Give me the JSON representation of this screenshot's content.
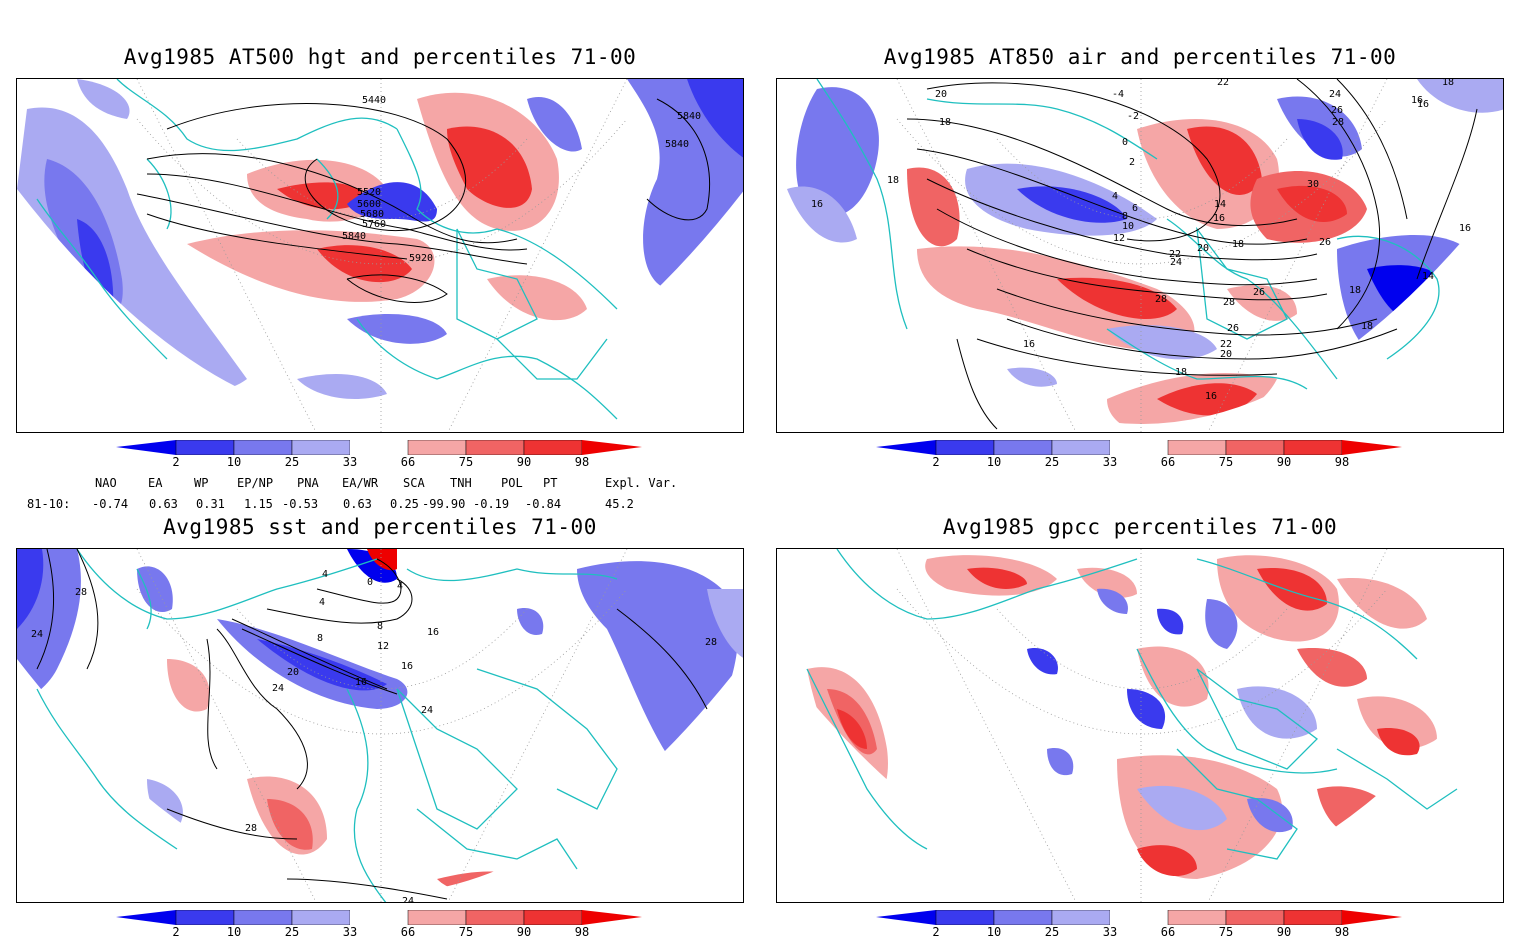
{
  "panels": [
    {
      "title": "Avg1985 AT500 hgt and percentiles 71-00",
      "contour_labels": [
        "5440",
        "5840",
        "5840",
        "5520",
        "5600",
        "5680",
        "5760",
        "5840",
        "5920"
      ]
    },
    {
      "title": "Avg1985 AT850 air and percentiles 71-00",
      "contour_labels": [
        "22",
        "20",
        "18",
        "-4",
        "-2",
        "0",
        "2",
        "4",
        "6",
        "8",
        "10",
        "12",
        "16",
        "18",
        "14",
        "16",
        "18",
        "20",
        "22",
        "24",
        "28",
        "26",
        "28",
        "26",
        "22",
        "20",
        "18",
        "16",
        "16",
        "30",
        "26",
        "24",
        "26",
        "28",
        "16",
        "18",
        "14",
        "16",
        "18",
        "18",
        "16"
      ]
    },
    {
      "title": "Avg1985 sst and percentiles 71-00",
      "contour_labels": [
        "28",
        "24",
        "4",
        "4",
        "8",
        "8",
        "12",
        "20",
        "16",
        "24",
        "28",
        "24",
        "28",
        "16",
        "24",
        "16",
        "0",
        "4"
      ]
    },
    {
      "title": "Avg1985 gpcc percentiles 71-00",
      "contour_labels": []
    }
  ],
  "colorbar": {
    "ticks": [
      "2",
      "10",
      "25",
      "33",
      "66",
      "75",
      "90",
      "98"
    ],
    "colors": {
      "below_2": "#0000ee",
      "2_10": "#3a3aee",
      "10_25": "#7878ee",
      "25_33": "#aaaaf2",
      "33_66": "#ffffff",
      "66_75": "#f5a6a6",
      "75_90": "#f06464",
      "90_98": "#ee3333",
      "above_98": "#ee0000"
    }
  },
  "indices": {
    "header": [
      "NAO",
      "EA",
      "WP",
      "EP/NP",
      "PNA",
      "EA/WR",
      "SCA",
      "TNH",
      "POL",
      "PT",
      "Expl. Var."
    ],
    "row_label": "81-10:",
    "values": [
      "-0.74",
      "0.63",
      "0.31",
      "1.15",
      "-0.53",
      "0.63",
      "0.25",
      "-99.90",
      "-0.19",
      "-0.84",
      "45.2"
    ]
  },
  "map_colors": {
    "coast": "#1fbfbf",
    "contour": "#000000",
    "grid": "#9a9a9a"
  }
}
